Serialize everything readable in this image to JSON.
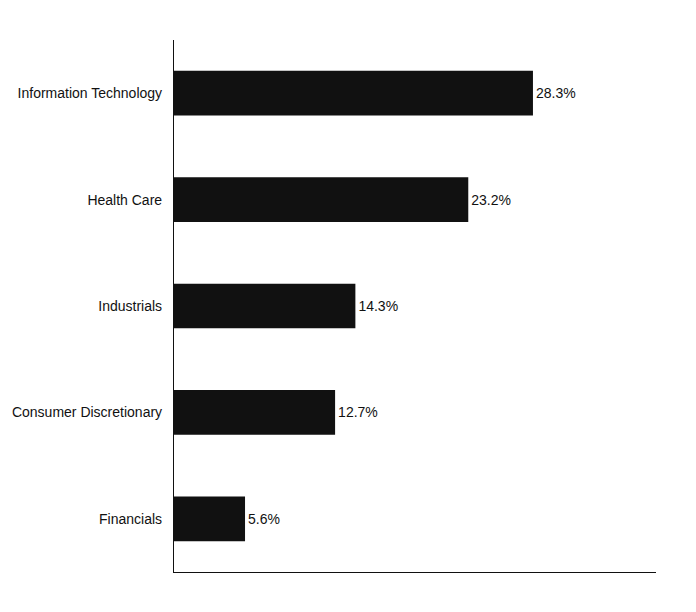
{
  "chart_data": {
    "type": "bar",
    "orientation": "horizontal",
    "categories": [
      "Information Technology",
      "Health Care",
      "Industrials",
      "Consumer Discretionary",
      "Financials"
    ],
    "values": [
      28.3,
      23.2,
      14.3,
      12.7,
      5.6
    ],
    "value_labels": [
      "28.3%",
      "23.2%",
      "14.3%",
      "12.7%",
      "5.6%"
    ],
    "data_labels": true,
    "color": "#111111",
    "xlim": [
      0,
      38
    ],
    "xticks": [],
    "tick_labels": "y",
    "grid": false
  }
}
